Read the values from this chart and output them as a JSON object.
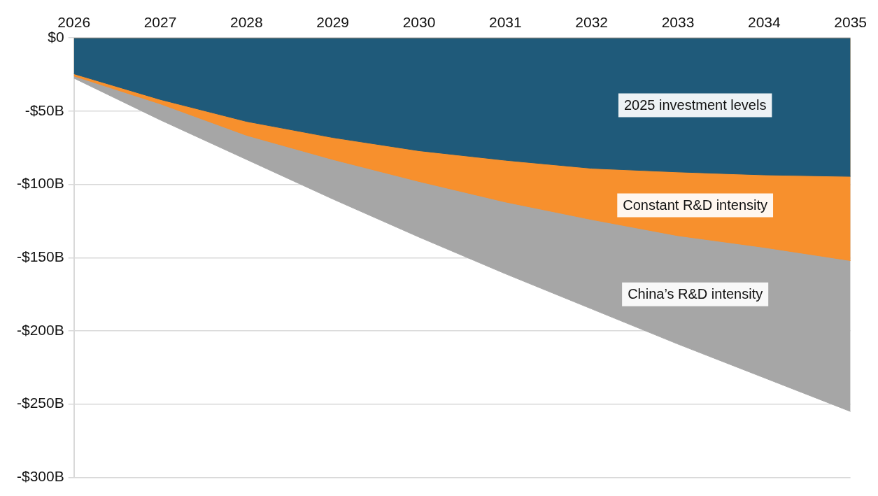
{
  "chart_data": {
    "type": "area",
    "categories": [
      "2026",
      "2027",
      "2028",
      "2029",
      "2030",
      "2031",
      "2032",
      "2033",
      "2034",
      "2035"
    ],
    "series": [
      {
        "name": "2025 investment levels",
        "color": "#1f5a7a",
        "values": [
          -24.5,
          -42,
          -57,
          -68,
          -77,
          -83.5,
          -89,
          -91.5,
          -93.5,
          -94.5
        ]
      },
      {
        "name": "Constant R&D intensity",
        "color": "#f7902d",
        "values": [
          -26,
          -45,
          -66.5,
          -83,
          -98,
          -112,
          -124,
          -135,
          -143,
          -152
        ]
      },
      {
        "name": "China’s R&D intensity",
        "color": "#a6a6a6",
        "values": [
          -27.5,
          -56,
          -83,
          -110,
          -136,
          -161,
          -185,
          -209,
          -232,
          -255
        ]
      }
    ],
    "ylim": [
      -300,
      0
    ],
    "yticks": [
      {
        "value": 0,
        "label": "$0"
      },
      {
        "value": -50,
        "label": "-$50B"
      },
      {
        "value": -100,
        "label": "-$100B"
      },
      {
        "value": -150,
        "label": "-$150B"
      },
      {
        "value": -200,
        "label": "-$200B"
      },
      {
        "value": -250,
        "label": "-$250B"
      },
      {
        "value": -300,
        "label": "-$300B"
      }
    ],
    "grid": "y",
    "legend": false
  }
}
